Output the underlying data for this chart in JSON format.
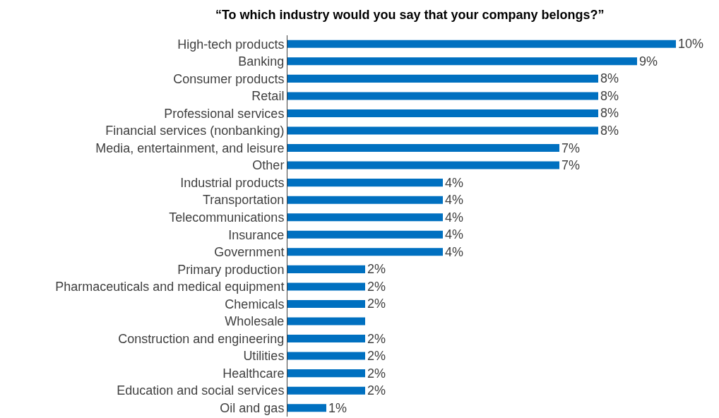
{
  "chart_data": {
    "type": "bar",
    "orientation": "horizontal",
    "title": "“To which industry would you say that your company belongs?”",
    "categories": [
      "High-tech products",
      "Banking",
      "Consumer products",
      "Retail",
      "Professional services",
      "Financial services (nonbanking)",
      "Media, entertainment, and leisure",
      "Other",
      "Industrial products",
      "Transportation",
      "Telecommunications",
      "Insurance",
      "Government",
      "Primary production",
      "Pharmaceuticals and medical equipment",
      "Chemicals",
      "Wholesale",
      "Construction and engineering",
      "Utilities",
      "Healthcare",
      "Education and social services",
      "Oil and gas"
    ],
    "values": [
      10,
      9,
      8,
      8,
      8,
      8,
      7,
      7,
      4,
      4,
      4,
      4,
      4,
      2,
      2,
      2,
      2,
      2,
      2,
      2,
      2,
      1
    ],
    "value_labels": [
      "10%",
      "9%",
      "8%",
      "8%",
      "8%",
      "8%",
      "7%",
      "7%",
      "4%",
      "4%",
      "4%",
      "4%",
      "4%",
      "2%",
      "2%",
      "2%",
      null,
      "2%",
      "2%",
      "2%",
      "2%",
      "1%"
    ],
    "color": "#0070c0",
    "xlim": [
      0,
      10
    ],
    "tick_labels": "y"
  }
}
